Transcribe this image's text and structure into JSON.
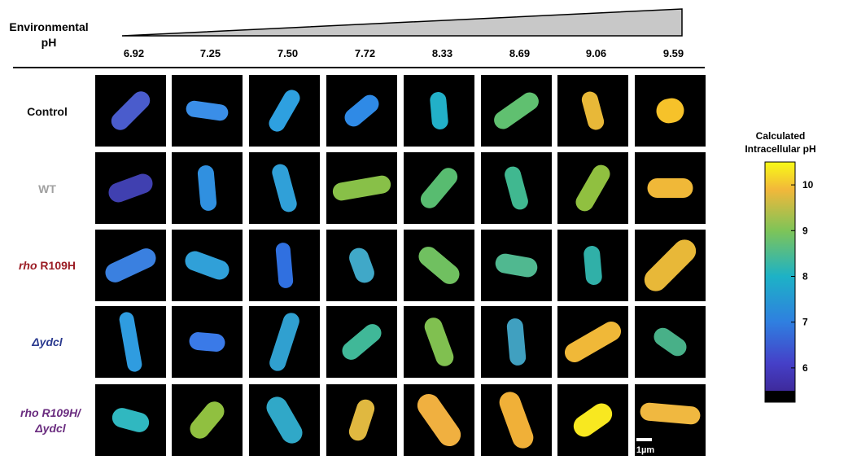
{
  "header": {
    "label_lines": [
      "Environmental",
      "pH"
    ],
    "ph_values": [
      "6.92",
      "7.25",
      "7.50",
      "7.72",
      "8.33",
      "8.69",
      "9.06",
      "9.59"
    ]
  },
  "rows": [
    {
      "parts": [
        "Control"
      ]
    },
    {
      "parts": [
        "WT"
      ]
    },
    {
      "parts": [
        "rho",
        " R109H"
      ]
    },
    {
      "parts": [
        "Δydcl"
      ]
    },
    {
      "parts": [
        "rho R109H/",
        "Δydcl"
      ]
    }
  ],
  "scale_bar": "1µm",
  "colorbar": {
    "title_lines": [
      "Calculated",
      "Intracellular pH"
    ],
    "ticks": [
      6,
      7,
      8,
      9,
      10
    ],
    "lim": [
      5.5,
      10.5
    ]
  }
}
